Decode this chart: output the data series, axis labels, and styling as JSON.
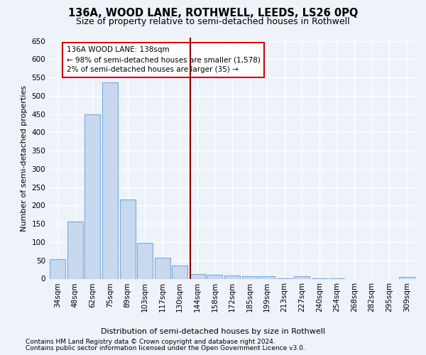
{
  "title": "136A, WOOD LANE, ROTHWELL, LEEDS, LS26 0PQ",
  "subtitle": "Size of property relative to semi-detached houses in Rothwell",
  "xlabel": "Distribution of semi-detached houses by size in Rothwell",
  "ylabel": "Number of semi-detached properties",
  "footnote1": "Contains HM Land Registry data © Crown copyright and database right 2024.",
  "footnote2": "Contains public sector information licensed under the Open Government Licence v3.0.",
  "categories": [
    "34sqm",
    "48sqm",
    "62sqm",
    "75sqm",
    "89sqm",
    "103sqm",
    "117sqm",
    "130sqm",
    "144sqm",
    "158sqm",
    "172sqm",
    "185sqm",
    "199sqm",
    "213sqm",
    "227sqm",
    "240sqm",
    "254sqm",
    "268sqm",
    "282sqm",
    "295sqm",
    "309sqm"
  ],
  "values": [
    53,
    157,
    449,
    537,
    216,
    99,
    58,
    35,
    12,
    10,
    9,
    6,
    6,
    1,
    7,
    1,
    1,
    0,
    0,
    0,
    5
  ],
  "bar_color": "#c8d8ee",
  "bar_edge_color": "#7aabdb",
  "highlight_line_color": "#8b0000",
  "annotation_line1": "136A WOOD LANE: 138sqm",
  "annotation_line2": "← 98% of semi-detached houses are smaller (1,578)",
  "annotation_line3": "2% of semi-detached houses are larger (35) →",
  "annotation_box_color": "#ffffff",
  "annotation_box_edge_color": "#cc0000",
  "ylim": [
    0,
    660
  ],
  "yticks": [
    0,
    50,
    100,
    150,
    200,
    250,
    300,
    350,
    400,
    450,
    500,
    550,
    600,
    650
  ],
  "bg_color": "#eef2f9",
  "grid_color": "#ffffff",
  "title_fontsize": 10.5,
  "subtitle_fontsize": 9,
  "axis_label_fontsize": 8,
  "tick_fontsize": 7.5,
  "footnote_fontsize": 6.5,
  "ylabel_fontsize": 8
}
